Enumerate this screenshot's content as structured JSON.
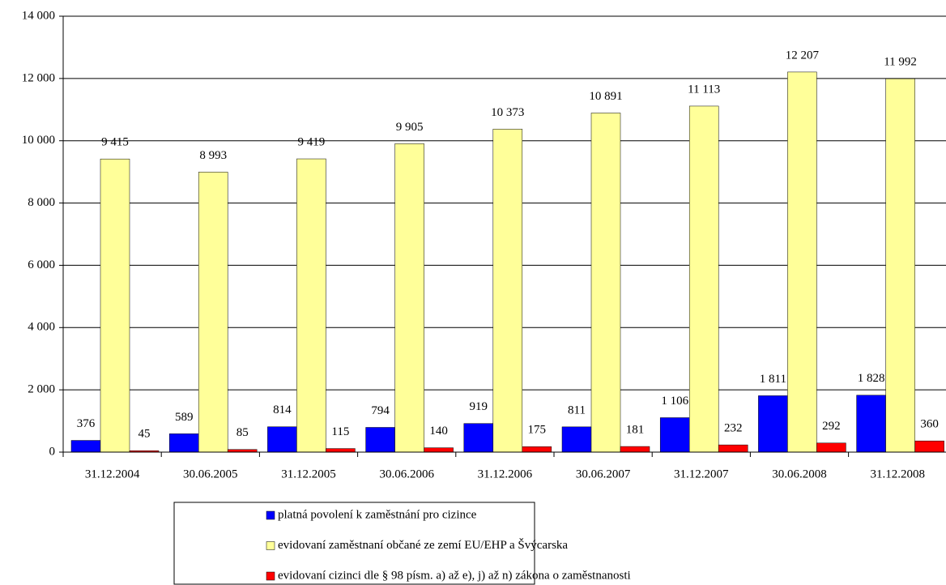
{
  "chart_data": {
    "type": "bar",
    "categories": [
      "31.12.2004",
      "30.06.2005",
      "31.12.2005",
      "30.06.2006",
      "31.12.2006",
      "30.06.2007",
      "31.12.2007",
      "30.06.2008",
      "31.12.2008"
    ],
    "series": [
      {
        "name": "platná povolení k zaměstnání pro cizince",
        "color": "#0000ff",
        "values": [
          376,
          589,
          814,
          794,
          919,
          811,
          1106,
          1811,
          1828
        ],
        "value_labels": [
          "376",
          "589",
          "814",
          "794",
          "919",
          "811",
          "1 106",
          "1 811",
          "1 828"
        ]
      },
      {
        "name": "evidovaní zaměstnaní občané ze zemí EU/EHP a Švýcarska",
        "color": "#ffff99",
        "values": [
          9415,
          8993,
          9419,
          9905,
          10373,
          10891,
          11113,
          12207,
          11992
        ],
        "value_labels": [
          "9 415",
          "8 993",
          "9 419",
          "9 905",
          "10 373",
          "10 891",
          "11 113",
          "12 207",
          "11 992"
        ]
      },
      {
        "name": "evidovaní cizinci dle § 98 písm. a) až e), j) až n) zákona o zaměstnanosti",
        "color": "#ff0000",
        "values": [
          45,
          85,
          115,
          140,
          175,
          181,
          232,
          292,
          360
        ]
      }
    ],
    "ylim": [
      0,
      14000
    ],
    "yticks": [
      0,
      {
        "value": 2000,
        "label": "2 000"
      },
      {
        "value": 4000,
        "label": "4 000"
      },
      {
        "value": 6000,
        "label": "6 000"
      },
      {
        "value": 8000,
        "label": "8 000"
      },
      {
        "value": 10000,
        "label": "10 000"
      },
      {
        "value": 12000,
        "label": "12 000"
      },
      {
        "value": 14000,
        "label": "14 000"
      }
    ],
    "grid": true
  }
}
